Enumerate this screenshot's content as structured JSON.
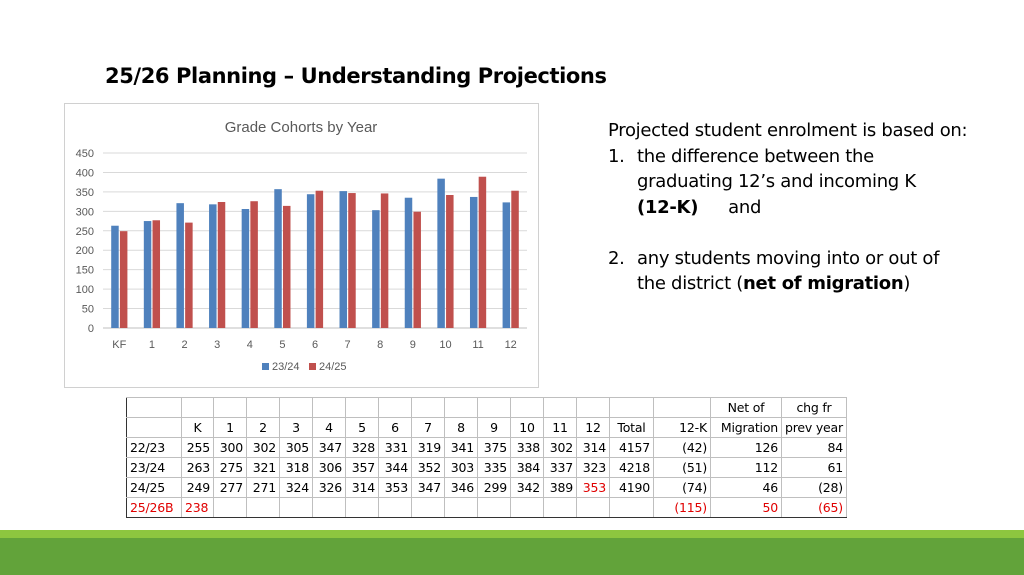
{
  "title": "25/26 Planning – Understanding Projections",
  "chart_data": {
    "type": "bar",
    "title": "Grade Cohorts by Year",
    "categories": [
      "KF",
      "1",
      "2",
      "3",
      "4",
      "5",
      "6",
      "7",
      "8",
      "9",
      "10",
      "11",
      "12"
    ],
    "series": [
      {
        "name": "23/24",
        "color": "#4f81bd",
        "values": [
          263,
          275,
          321,
          318,
          306,
          357,
          344,
          352,
          303,
          335,
          384,
          337,
          323
        ]
      },
      {
        "name": "24/25",
        "color": "#c0504d",
        "values": [
          249,
          277,
          271,
          324,
          326,
          314,
          353,
          347,
          346,
          299,
          342,
          389,
          353
        ]
      }
    ],
    "ylim": [
      0,
      450
    ],
    "yticks": [
      0,
      50,
      100,
      150,
      200,
      250,
      300,
      350,
      400,
      450
    ],
    "grid": true,
    "legend": "bottom",
    "xlabel": "",
    "ylabel": ""
  },
  "description": {
    "intro": "Projected student enrolment is based on:",
    "item1_num": "1.",
    "item1_text": "the difference between the graduating 12’s and incoming K",
    "item1_bold": "(12-K)",
    "item1_and": "and",
    "item2_num": "2.",
    "item2_text": "any students moving into or out of the district (",
    "item2_bold": "net of migration",
    "item2_close": ")"
  },
  "table": {
    "header_top": {
      "net1": "Net of",
      "chg1": "chg fr"
    },
    "header": {
      "k": "K",
      "grades": [
        "1",
        "2",
        "3",
        "4",
        "5",
        "6",
        "7",
        "8",
        "9",
        "10",
        "11",
        "12"
      ],
      "total": "Total",
      "diff": "12-K",
      "net2": "Migration",
      "chg2": "prev year"
    },
    "rows": [
      {
        "label": "22/23",
        "k": "255",
        "grades": [
          "300",
          "302",
          "305",
          "347",
          "328",
          "331",
          "319",
          "341",
          "375",
          "338",
          "302",
          "314"
        ],
        "total": "4157",
        "diff": "(42)",
        "net": "126",
        "chg": "84"
      },
      {
        "label": "23/24",
        "k": "263",
        "grades": [
          "275",
          "321",
          "318",
          "306",
          "357",
          "344",
          "352",
          "303",
          "335",
          "384",
          "337",
          "323"
        ],
        "total": "4218",
        "diff": "(51)",
        "net": "112",
        "chg": "61"
      },
      {
        "label": "24/25",
        "k": "249",
        "grades": [
          "277",
          "271",
          "324",
          "326",
          "314",
          "353",
          "347",
          "346",
          "299",
          "342",
          "389",
          "353"
        ],
        "total": "4190",
        "diff": "(74)",
        "net": "46",
        "chg": "(28)"
      },
      {
        "label": "25/26B",
        "k": "238",
        "grades": [
          "",
          "",
          "",
          "",
          "",
          "",
          "",
          "",
          "",
          "",
          "",
          ""
        ],
        "total": "",
        "diff": "(115)",
        "net": "50",
        "chg": "(65)"
      }
    ]
  },
  "colors": {
    "band_light": "#8dc63f",
    "band_dark": "#62a33a",
    "highlight": "#e00000"
  }
}
